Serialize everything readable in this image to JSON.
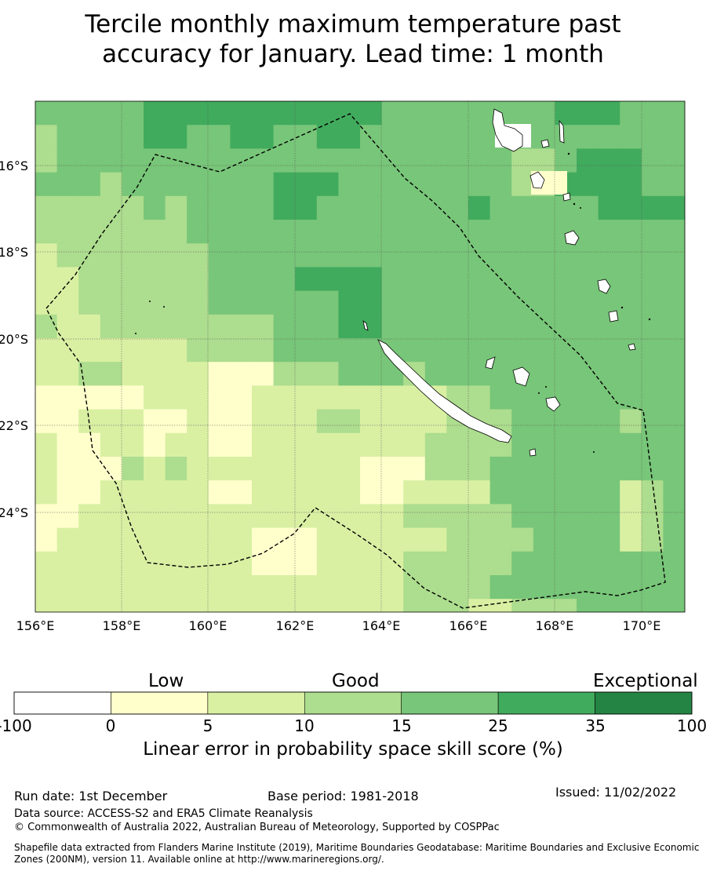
{
  "title_line1": "Tercile monthly maximum temperature past",
  "title_line2": "accuracy for January. Lead time: 1 month",
  "map": {
    "lon_ticks": [
      "156°E",
      "158°E",
      "160°E",
      "162°E",
      "164°E",
      "166°E",
      "168°E",
      "170°E"
    ],
    "lat_ticks": [
      "16°S",
      "18°S",
      "20°S",
      "22°S",
      "24°S"
    ]
  },
  "legend": {
    "categories": [
      "Low",
      "Good",
      "Exceptional"
    ],
    "ticks": [
      "-100",
      "0",
      "5",
      "10",
      "15",
      "25",
      "35",
      "100"
    ],
    "colors": [
      "#ffffff",
      "#ffffcc",
      "#d9f0a3",
      "#addd8e",
      "#78c679",
      "#41ab5d",
      "#238443"
    ],
    "label": "Linear error in probability space skill score (%)"
  },
  "footer": {
    "run_date": "Run date: 1st December",
    "base_period": "Base period: 1981-2018",
    "issued": "Issued: 11/02/2022",
    "data_source": "Data source: ACCESS-S2 and ERA5 Climate Reanalysis",
    "copyright": "© Commonwealth of Australia 2022, Australian Bureau of Meteorology, Supported by COSPPac",
    "shapefile_line1": "Shapefile data extracted from Flanders Marine Institute (2019), Maritime Boundaries Geodatabase: Maritime Boundaries and Exclusive Economic",
    "shapefile_line2": "Zones (200NM), version 11. Available online at http://www.marineregions.org/."
  }
}
